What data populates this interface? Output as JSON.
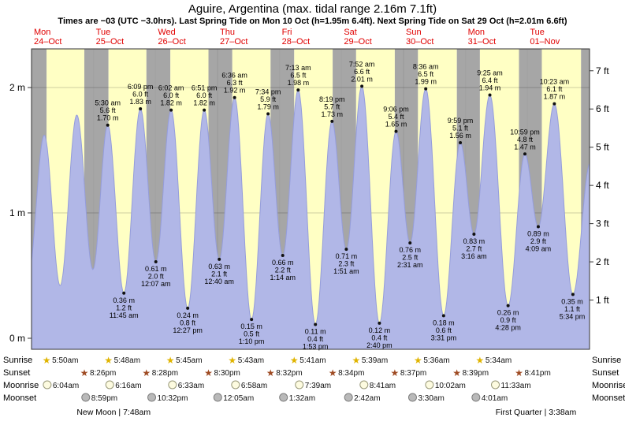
{
  "header": {
    "title": "Aguire, Argentina (max. tidal range 2.16m 7.1ft)",
    "subtitle": "Times are −03 (UTC −3.0hrs). Last Spring Tide on Mon 10 Oct (h=1.95m 6.4ft). Next Spring Tide on Sat 29 Oct (h=2.01m 6.6ft)"
  },
  "colors": {
    "day_band": "#ffffc4",
    "night_band": "#a6a6a6",
    "tide_fill": "#b1b7e7",
    "tide_stroke": "#959ddb",
    "date_label": "#e00000",
    "sunrise_star": "#e0b400",
    "sunset_star": "#9e4a22",
    "moonrise_fill": "#fdfbe0",
    "moonset_fill": "#b9b9b9"
  },
  "chart_data": {
    "type": "area",
    "title": "Tide height over 9 days",
    "y_left": {
      "unit": "m",
      "ticks": [
        0,
        1,
        2
      ],
      "labels": [
        "0 m",
        "1 m",
        "2 m"
      ]
    },
    "y_right": {
      "unit": "ft",
      "ticks": [
        1,
        2,
        3,
        4,
        5,
        6,
        7
      ],
      "labels": [
        "1 ft",
        "2 ft",
        "3 ft",
        "4 ft",
        "5 ft",
        "6 ft",
        "7 ft"
      ]
    },
    "ylim_m": [
      0,
      2.3
    ],
    "days": [
      {
        "name": "Mon",
        "date": "24–Oct"
      },
      {
        "name": "Tue",
        "date": "25–Oct"
      },
      {
        "name": "Wed",
        "date": "26–Oct"
      },
      {
        "name": "Thu",
        "date": "27–Oct"
      },
      {
        "name": "Fri",
        "date": "28–Oct"
      },
      {
        "name": "Sat",
        "date": "29–Oct"
      },
      {
        "name": "Sun",
        "date": "30–Oct"
      },
      {
        "name": "Mon",
        "date": "31–Oct"
      },
      {
        "name": "Tue",
        "date": "01–Nov"
      }
    ],
    "tides": [
      {
        "day": 1,
        "type": "high",
        "time": "5:30 am",
        "height_m": 1.7,
        "height_ft": 5.6
      },
      {
        "day": 1,
        "type": "low",
        "time": "11:45 am",
        "height_m": 0.36,
        "height_ft": 1.2
      },
      {
        "day": 1,
        "type": "high",
        "time": "6:09 pm",
        "height_m": 1.83,
        "height_ft": 6.0
      },
      {
        "day": 2,
        "type": "low",
        "time": "12:07 am",
        "height_m": 0.61,
        "height_ft": 2.0
      },
      {
        "day": 2,
        "type": "high",
        "time": "6:02 am",
        "height_m": 1.82,
        "height_ft": 6.0
      },
      {
        "day": 2,
        "type": "low",
        "time": "12:27 pm",
        "height_m": 0.24,
        "height_ft": 0.8
      },
      {
        "day": 2,
        "type": "high",
        "time": "6:51 pm",
        "height_m": 1.82,
        "height_ft": 6.0
      },
      {
        "day": 3,
        "type": "low",
        "time": "12:40 am",
        "height_m": 0.63,
        "height_ft": 2.1
      },
      {
        "day": 3,
        "type": "high",
        "time": "6:36 am",
        "height_m": 1.92,
        "height_ft": 6.3
      },
      {
        "day": 3,
        "type": "low",
        "time": "1:10 pm",
        "height_m": 0.15,
        "height_ft": 0.5
      },
      {
        "day": 3,
        "type": "high",
        "time": "7:34 pm",
        "height_m": 1.79,
        "height_ft": 5.9
      },
      {
        "day": 4,
        "type": "low",
        "time": "1:14 am",
        "height_m": 0.66,
        "height_ft": 2.2
      },
      {
        "day": 4,
        "type": "high",
        "time": "7:13 am",
        "height_m": 1.98,
        "height_ft": 6.5
      },
      {
        "day": 4,
        "type": "low",
        "time": "1:53 pm",
        "height_m": 0.11,
        "height_ft": 0.4
      },
      {
        "day": 4,
        "type": "high",
        "time": "8:19 pm",
        "height_m": 1.73,
        "height_ft": 5.7
      },
      {
        "day": 5,
        "type": "low",
        "time": "1:51 am",
        "height_m": 0.71,
        "height_ft": 2.3
      },
      {
        "day": 5,
        "type": "high",
        "time": "7:52 am",
        "height_m": 2.01,
        "height_ft": 6.6
      },
      {
        "day": 5,
        "type": "low",
        "time": "2:40 pm",
        "height_m": 0.12,
        "height_ft": 0.4
      },
      {
        "day": 5,
        "type": "high",
        "time": "9:06 pm",
        "height_m": 1.65,
        "height_ft": 5.4
      },
      {
        "day": 6,
        "type": "low",
        "time": "2:31 am",
        "height_m": 0.76,
        "height_ft": 2.5
      },
      {
        "day": 6,
        "type": "high",
        "time": "8:36 am",
        "height_m": 1.99,
        "height_ft": 6.5
      },
      {
        "day": 6,
        "type": "low",
        "time": "3:31 pm",
        "height_m": 0.18,
        "height_ft": 0.6
      },
      {
        "day": 6,
        "type": "high",
        "time": "9:59 pm",
        "height_m": 1.56,
        "height_ft": 5.1
      },
      {
        "day": 7,
        "type": "low",
        "time": "3:16 am",
        "height_m": 0.83,
        "height_ft": 2.7
      },
      {
        "day": 7,
        "type": "high",
        "time": "9:25 am",
        "height_m": 1.94,
        "height_ft": 6.4
      },
      {
        "day": 7,
        "type": "low",
        "time": "4:28 pm",
        "height_m": 0.26,
        "height_ft": 0.9
      },
      {
        "day": 7,
        "type": "high",
        "time": "10:59 pm",
        "height_m": 1.47,
        "height_ft": 4.8
      },
      {
        "day": 8,
        "type": "low",
        "time": "4:09 am",
        "height_m": 0.89,
        "height_ft": 2.9
      },
      {
        "day": 8,
        "type": "high",
        "time": "10:23 am",
        "height_m": 1.87,
        "height_ft": 6.1
      },
      {
        "day": 8,
        "type": "low",
        "time": "5:34 pm",
        "height_m": 0.35,
        "height_ft": 1.1
      }
    ]
  },
  "sun_moon": {
    "row_labels": [
      "Sunrise",
      "Sunset",
      "Moonrise",
      "Moonset"
    ],
    "sunrise": [
      {
        "day": 0,
        "time": "5:50am"
      },
      {
        "day": 1,
        "time": "5:48am"
      },
      {
        "day": 2,
        "time": "5:45am"
      },
      {
        "day": 3,
        "time": "5:43am"
      },
      {
        "day": 4,
        "time": "5:41am"
      },
      {
        "day": 5,
        "time": "5:39am"
      },
      {
        "day": 6,
        "time": "5:36am"
      },
      {
        "day": 7,
        "time": "5:34am"
      }
    ],
    "sunset": [
      {
        "day": 0,
        "time": "8:26pm"
      },
      {
        "day": 1,
        "time": "8:28pm"
      },
      {
        "day": 2,
        "time": "8:30pm"
      },
      {
        "day": 3,
        "time": "8:32pm"
      },
      {
        "day": 4,
        "time": "8:34pm"
      },
      {
        "day": 5,
        "time": "8:37pm"
      },
      {
        "day": 6,
        "time": "8:39pm"
      },
      {
        "day": 7,
        "time": "8:41pm"
      }
    ],
    "moonrise": [
      {
        "day": 0,
        "time": "6:04am"
      },
      {
        "day": 1,
        "time": "6:16am"
      },
      {
        "day": 2,
        "time": "6:33am"
      },
      {
        "day": 3,
        "time": "6:58am"
      },
      {
        "day": 4,
        "time": "7:39am"
      },
      {
        "day": 5,
        "time": "8:41am"
      },
      {
        "day": 6,
        "time": "10:02am"
      },
      {
        "day": 7,
        "time": "11:33am"
      }
    ],
    "moonset": [
      {
        "day": 0,
        "time": "8:59pm"
      },
      {
        "day": 1,
        "time": "10:32pm"
      },
      {
        "day": 3,
        "time": "12:05am"
      },
      {
        "day": 4,
        "time": "1:32am"
      },
      {
        "day": 5,
        "time": "2:42am"
      },
      {
        "day": 6,
        "time": "3:30am"
      },
      {
        "day": 7,
        "time": "4:01am"
      }
    ],
    "phases": [
      {
        "day": 1,
        "time": "7:48am",
        "label": "New Moon | 7:48am"
      },
      {
        "day": 8,
        "time": "3:38am",
        "label": "First Quarter | 3:38am"
      }
    ]
  }
}
